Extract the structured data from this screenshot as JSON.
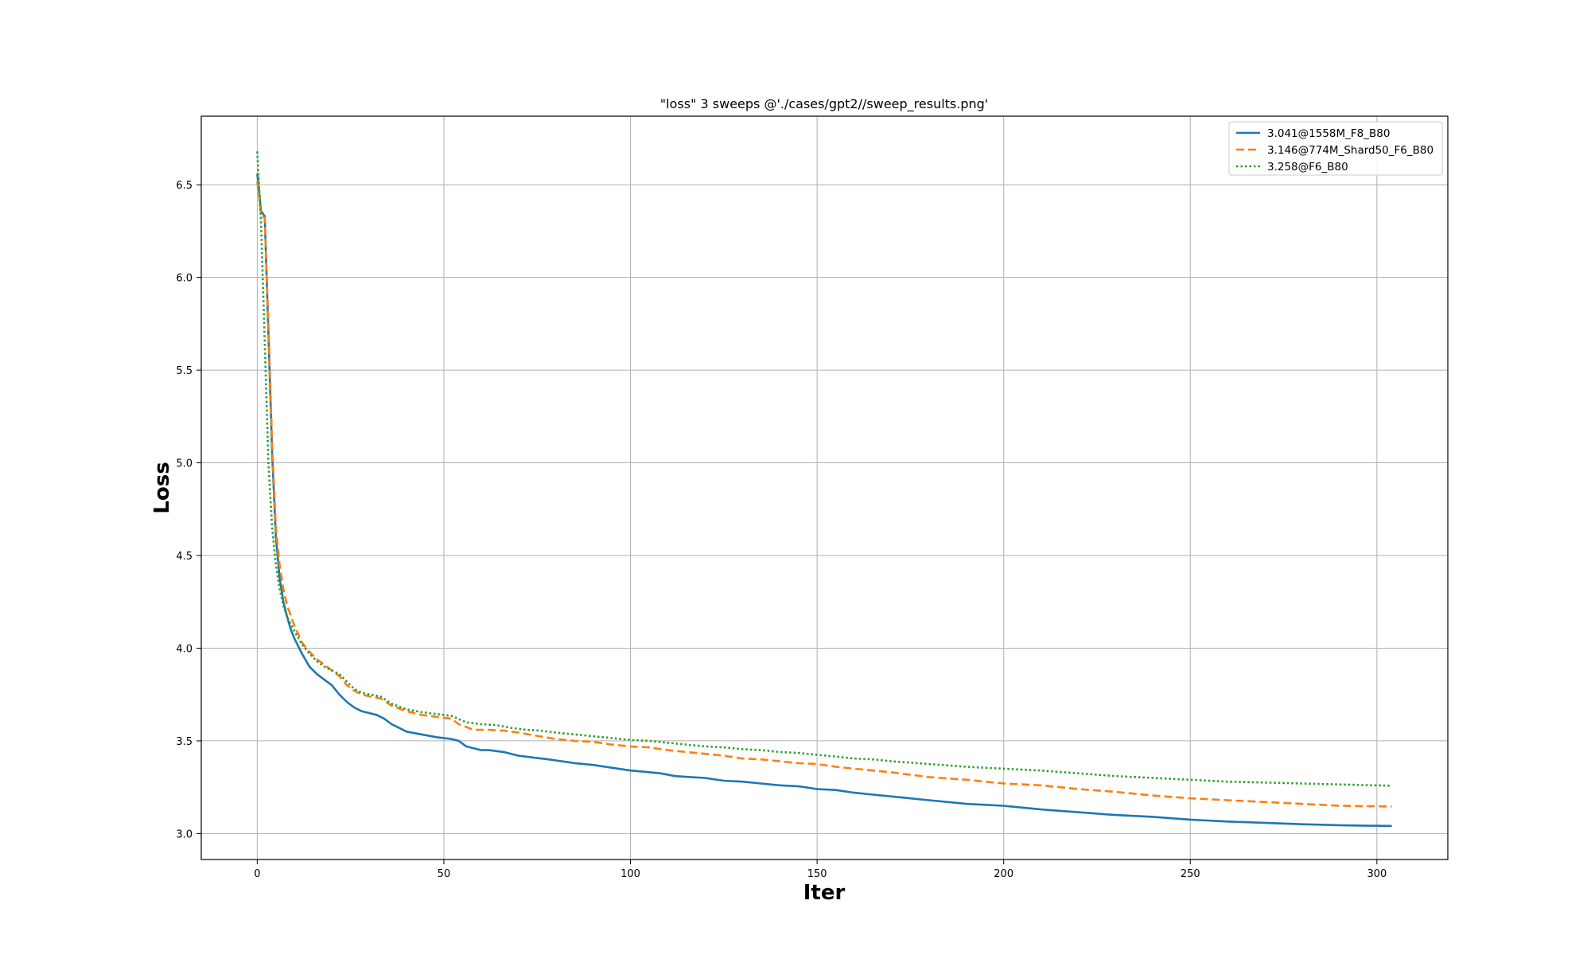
{
  "chart_data": {
    "type": "line",
    "title": "\"loss\" 3 sweeps @'./cases/gpt2//sweep_results.png'",
    "xlabel": "Iter",
    "ylabel": "Loss",
    "xlim": [
      -15,
      319
    ],
    "ylim": [
      2.86,
      6.87
    ],
    "xticks": [
      0,
      50,
      100,
      150,
      200,
      250,
      300
    ],
    "yticks": [
      3.0,
      3.5,
      4.0,
      4.5,
      5.0,
      5.5,
      6.0,
      6.5
    ],
    "xtick_labels": [
      "0",
      "50",
      "100",
      "150",
      "200",
      "250",
      "300"
    ],
    "ytick_labels": [
      "3.0",
      "3.5",
      "4.0",
      "4.5",
      "5.0",
      "5.5",
      "6.0",
      "6.5"
    ],
    "grid": true,
    "legend_position": "top-right",
    "series": [
      {
        "name": "3.041@1558M_F8_B80",
        "color": "#1f77b4",
        "style": "solid",
        "x": [
          0,
          1,
          2,
          3,
          4,
          5,
          6,
          7,
          8,
          9,
          10,
          12,
          14,
          16,
          18,
          20,
          22,
          24,
          26,
          28,
          30,
          32,
          34,
          36,
          38,
          40,
          44,
          48,
          52,
          54,
          56,
          60,
          62,
          66,
          70,
          74,
          78,
          85,
          90,
          95,
          100,
          103,
          108,
          112,
          116,
          120,
          125,
          130,
          135,
          140,
          145,
          150,
          155,
          160,
          165,
          170,
          180,
          190,
          200,
          210,
          220,
          230,
          240,
          250,
          260,
          270,
          280,
          290,
          296,
          304
        ],
        "values": [
          6.56,
          6.36,
          6.33,
          5.7,
          5.05,
          4.6,
          4.38,
          4.25,
          4.17,
          4.1,
          4.05,
          3.97,
          3.9,
          3.86,
          3.83,
          3.8,
          3.75,
          3.71,
          3.68,
          3.66,
          3.65,
          3.64,
          3.62,
          3.59,
          3.57,
          3.55,
          3.535,
          3.52,
          3.51,
          3.5,
          3.47,
          3.45,
          3.45,
          3.44,
          3.42,
          3.41,
          3.4,
          3.38,
          3.37,
          3.355,
          3.34,
          3.335,
          3.325,
          3.31,
          3.305,
          3.3,
          3.285,
          3.28,
          3.27,
          3.26,
          3.255,
          3.24,
          3.235,
          3.22,
          3.21,
          3.2,
          3.18,
          3.16,
          3.15,
          3.13,
          3.115,
          3.1,
          3.09,
          3.075,
          3.065,
          3.058,
          3.05,
          3.045,
          3.043,
          3.041
        ]
      },
      {
        "name": "3.146@774M_Shard50_F6_B80",
        "color": "#ff7f0e",
        "style": "dashed",
        "x": [
          0,
          1,
          2,
          3,
          4,
          5,
          6,
          7,
          8,
          10,
          12,
          14,
          16,
          18,
          20,
          22,
          24,
          26,
          28,
          30,
          33,
          36,
          40,
          44,
          48,
          52,
          54,
          58,
          62,
          66,
          70,
          74,
          80,
          85,
          90,
          95,
          100,
          105,
          110,
          115,
          120,
          125,
          130,
          135,
          140,
          145,
          150,
          155,
          160,
          165,
          170,
          180,
          190,
          200,
          210,
          220,
          230,
          240,
          250,
          260,
          270,
          280,
          290,
          296,
          304
        ],
        "values": [
          6.52,
          6.34,
          6.32,
          5.75,
          5.1,
          4.65,
          4.45,
          4.32,
          4.23,
          4.12,
          4.03,
          3.98,
          3.94,
          3.91,
          3.88,
          3.85,
          3.8,
          3.77,
          3.75,
          3.74,
          3.73,
          3.69,
          3.66,
          3.64,
          3.63,
          3.62,
          3.59,
          3.56,
          3.56,
          3.555,
          3.545,
          3.53,
          3.51,
          3.5,
          3.495,
          3.48,
          3.47,
          3.465,
          3.45,
          3.44,
          3.43,
          3.42,
          3.405,
          3.4,
          3.39,
          3.38,
          3.375,
          3.36,
          3.35,
          3.34,
          3.33,
          3.305,
          3.29,
          3.27,
          3.26,
          3.24,
          3.225,
          3.205,
          3.19,
          3.18,
          3.17,
          3.16,
          3.15,
          3.148,
          3.146
        ]
      },
      {
        "name": "3.258@F6_B80",
        "color": "#2ca02c",
        "style": "dotted",
        "x": [
          0,
          1,
          2,
          3,
          4,
          5,
          6,
          7,
          8,
          10,
          12,
          14,
          16,
          18,
          20,
          22,
          24,
          26,
          28,
          30,
          33,
          36,
          40,
          44,
          48,
          52,
          56,
          60,
          64,
          68,
          72,
          76,
          80,
          85,
          90,
          95,
          100,
          105,
          110,
          115,
          120,
          125,
          130,
          135,
          140,
          145,
          150,
          155,
          160,
          165,
          170,
          180,
          190,
          200,
          210,
          220,
          230,
          240,
          250,
          260,
          270,
          280,
          290,
          296,
          304
        ],
        "values": [
          6.68,
          6.3,
          5.65,
          5.0,
          4.65,
          4.45,
          4.32,
          4.23,
          4.17,
          4.09,
          4.02,
          3.97,
          3.93,
          3.9,
          3.88,
          3.86,
          3.82,
          3.78,
          3.76,
          3.75,
          3.74,
          3.7,
          3.67,
          3.655,
          3.645,
          3.635,
          3.6,
          3.59,
          3.585,
          3.57,
          3.56,
          3.555,
          3.545,
          3.535,
          3.525,
          3.515,
          3.505,
          3.5,
          3.49,
          3.48,
          3.47,
          3.465,
          3.455,
          3.45,
          3.44,
          3.435,
          3.425,
          3.415,
          3.405,
          3.4,
          3.39,
          3.375,
          3.36,
          3.35,
          3.34,
          3.325,
          3.31,
          3.3,
          3.29,
          3.28,
          3.275,
          3.27,
          3.265,
          3.262,
          3.258
        ]
      }
    ]
  }
}
